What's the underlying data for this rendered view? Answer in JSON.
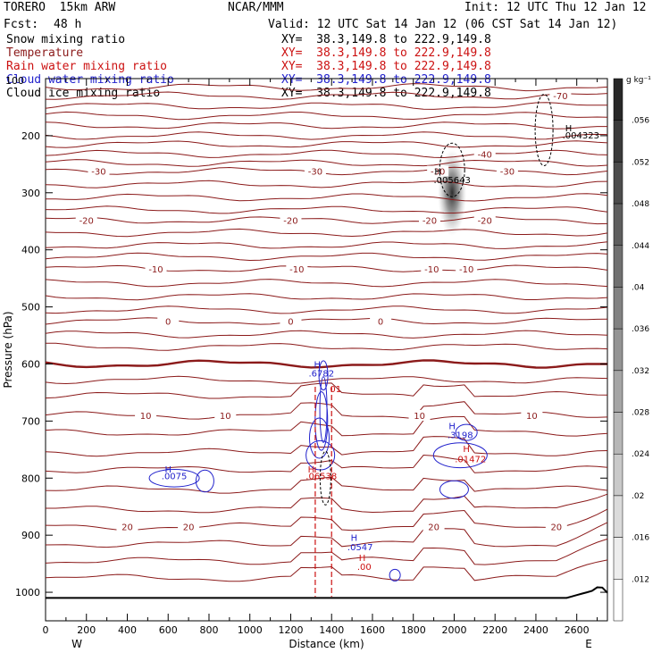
{
  "header": {
    "model": "TORERO  15km ARW",
    "org": "NCAR/MMM",
    "init": "Init: 12 UTC Thu 12 Jan 12",
    "fcst_label": "Fcst:",
    "fcst_value": "48 h",
    "valid": "Valid: 12 UTC Sat 14 Jan 12 (06 CST Sat 14 Jan 12)",
    "fields": [
      {
        "name": "Snow mixing ratio",
        "xy": "XY=  38.3,149.8 to 222.9,149.8"
      },
      {
        "name": "Temperature",
        "xy": "XY=  38.3,149.8 to 222.9,149.8"
      },
      {
        "name": "Rain water mixing ratio",
        "xy": "XY=  38.3,149.8 to 222.9,149.8"
      },
      {
        "name": "Cloud water mixing ratio",
        "xy": "XY=  38.3,149.8 to 222.9,149.8"
      },
      {
        "name": "Cloud ice mixing ratio",
        "xy": "XY=  38.3,149.8 to 222.9,149.8"
      }
    ],
    "top_left_pressure": "100",
    "colors": {
      "black": "#000000",
      "temperature": "#8b1a1a",
      "rain": "#cc1111",
      "cloud": "#2222cc"
    }
  },
  "chart_data": {
    "type": "cross-section",
    "xlabel": "Distance (km)",
    "ylabel": "Pressure (hPa)",
    "xlim": [
      0,
      2750
    ],
    "ylim": [
      1050,
      100
    ],
    "x_ticks": [
      0,
      200,
      400,
      600,
      800,
      1000,
      1200,
      1400,
      1600,
      1800,
      2000,
      2200,
      2400,
      2600
    ],
    "y_ticks": [
      200,
      300,
      400,
      500,
      600,
      700,
      800,
      900,
      1000
    ],
    "west_label": "W",
    "east_label": "E",
    "colorbar": {
      "unit": "g kg⁻¹",
      "levels": [
        "",
        ".012",
        ".016",
        ".02",
        ".024",
        ".028",
        ".032",
        ".036",
        ".04",
        ".044",
        ".048",
        ".052",
        ".056",
        ""
      ]
    },
    "temperature_isotherms": [
      {
        "temp": -70,
        "p": 130,
        "label": "-70",
        "label_x": 2520
      },
      {
        "temp": -40,
        "p": 232,
        "label": "-40",
        "label_x": 2150
      },
      {
        "temp": -30,
        "p": 262,
        "label": "-30",
        "label_x": 260
      },
      {
        "temp": -30,
        "p": 262,
        "label": "-30",
        "label_x": 1320
      },
      {
        "temp": -30,
        "p": 262,
        "label": "-30",
        "label_x": 1920
      },
      {
        "temp": -30,
        "p": 262,
        "label": "-30",
        "label_x": 2260
      },
      {
        "temp": -20,
        "p": 348,
        "label": "-20",
        "label_x": 200
      },
      {
        "temp": -20,
        "p": 348,
        "label": "-20",
        "label_x": 1200
      },
      {
        "temp": -20,
        "p": 348,
        "label": "-20",
        "label_x": 1880
      },
      {
        "temp": -20,
        "p": 348,
        "label": "-20",
        "label_x": 2150
      },
      {
        "temp": -10,
        "p": 433,
        "label": "-10",
        "label_x": 540
      },
      {
        "temp": -10,
        "p": 433,
        "label": "-10",
        "label_x": 1230
      },
      {
        "temp": -10,
        "p": 433,
        "label": "-10",
        "label_x": 1890
      },
      {
        "temp": -10,
        "p": 433,
        "label": "-10",
        "label_x": 2060
      },
      {
        "temp": 0,
        "p": 525,
        "label": "0",
        "label_x": 600
      },
      {
        "temp": 0,
        "p": 525,
        "label": "0",
        "label_x": 1200
      },
      {
        "temp": 0,
        "p": 525,
        "label": "0",
        "label_x": 1640
      },
      {
        "temp": 10,
        "p": 690,
        "label": "10",
        "label_x": 490
      },
      {
        "temp": 10,
        "p": 690,
        "label": "10",
        "label_x": 880
      },
      {
        "temp": 10,
        "p": 690,
        "label": "10",
        "label_x": 1830
      },
      {
        "temp": 10,
        "p": 690,
        "label": "10",
        "label_x": 2380
      },
      {
        "temp": 20,
        "p": 885,
        "label": "20",
        "label_x": 400
      },
      {
        "temp": 20,
        "p": 885,
        "label": "20",
        "label_x": 700
      },
      {
        "temp": 20,
        "p": 885,
        "label": "20",
        "label_x": 1900
      },
      {
        "temp": 20,
        "p": 885,
        "label": "20",
        "label_x": 2500
      }
    ],
    "annotations": [
      {
        "text": "H",
        "x": 2560,
        "p": 192,
        "color": "#000000"
      },
      {
        "text": ".004323",
        "x": 2620,
        "p": 205,
        "color": "#000000"
      },
      {
        "text": "H",
        "x": 1920,
        "p": 268,
        "color": "#000000"
      },
      {
        "text": ".005643",
        "x": 1990,
        "p": 283,
        "color": "#000000"
      },
      {
        "text": "H",
        "x": 1330,
        "p": 606,
        "color": "#2222cc"
      },
      {
        "text": ".6782",
        "x": 1350,
        "p": 622,
        "color": "#2222cc"
      },
      {
        "text": "01",
        "x": 1420,
        "p": 649,
        "color": "#cc1111"
      },
      {
        "text": "H",
        "x": 600,
        "p": 790,
        "color": "#2222cc"
      },
      {
        "text": ".0075",
        "x": 630,
        "p": 802,
        "color": "#2222cc"
      },
      {
        "text": "H",
        "x": 1300,
        "p": 790,
        "color": "#cc1111"
      },
      {
        "text": ".06538",
        "x": 1350,
        "p": 802,
        "color": "#cc1111"
      },
      {
        "text": "H",
        "x": 1990,
        "p": 714,
        "color": "#2222cc"
      },
      {
        "text": ".3198",
        "x": 2030,
        "p": 730,
        "color": "#2222cc"
      },
      {
        "text": "H",
        "x": 2060,
        "p": 754,
        "color": "#cc1111"
      },
      {
        "text": ".01472",
        "x": 2080,
        "p": 772,
        "color": "#cc1111"
      },
      {
        "text": "H",
        "x": 1510,
        "p": 910,
        "color": "#2222cc"
      },
      {
        "text": ".0547",
        "x": 1540,
        "p": 926,
        "color": "#2222cc"
      },
      {
        "text": "H",
        "x": 1550,
        "p": 945,
        "color": "#cc1111"
      },
      {
        "text": ".00",
        "x": 1560,
        "p": 961,
        "color": "#cc1111"
      }
    ]
  }
}
